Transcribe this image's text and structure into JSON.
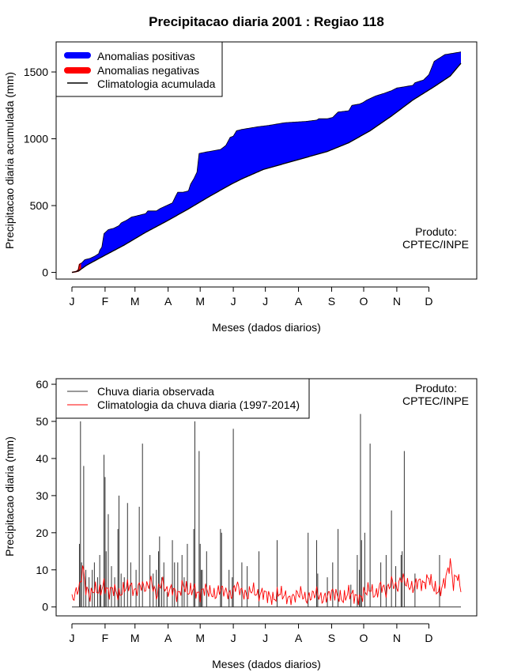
{
  "title": "Precipitacao diaria 2001 : Regiao 118",
  "colors": {
    "positive_anomaly": "#0000ff",
    "negative_anomaly": "#ff0000",
    "climatology_line": "#000000",
    "observed_rain": "#333333",
    "climatology_rain": "#ff0000"
  },
  "chart_data": [
    {
      "type": "area",
      "id": "accumulated",
      "ylabel": "Precipitacao diaria acumulada (mm)",
      "xlabel": "Meses (dados diarios)",
      "x_domain": [
        1,
        365
      ],
      "ylim": [
        -50,
        1725
      ],
      "yticks": [
        0,
        500,
        1000,
        1500
      ],
      "month_ticks": [
        {
          "label": "J",
          "day": 1
        },
        {
          "label": "F",
          "day": 32
        },
        {
          "label": "M",
          "day": 60
        },
        {
          "label": "A",
          "day": 91
        },
        {
          "label": "M",
          "day": 121
        },
        {
          "label": "J",
          "day": 152
        },
        {
          "label": "J",
          "day": 182
        },
        {
          "label": "A",
          "day": 213
        },
        {
          "label": "S",
          "day": 244
        },
        {
          "label": "O",
          "day": 274
        },
        {
          "label": "N",
          "day": 305
        },
        {
          "label": "D",
          "day": 335
        }
      ],
      "legend": [
        "Anomalias positivas",
        "Anomalias negativas",
        "Climatologia acumulada"
      ],
      "product_label": [
        "Produto:",
        "CPTEC/INPE"
      ],
      "climatology_accumulated": {
        "days": [
          1,
          7,
          15,
          30,
          50,
          70,
          90,
          110,
          130,
          150,
          160,
          180,
          200,
          220,
          240,
          260,
          280,
          300,
          320,
          340,
          355,
          365
        ],
        "values": [
          0,
          10,
          55,
          120,
          205,
          300,
          385,
          475,
          570,
          660,
          700,
          770,
          815,
          860,
          905,
          970,
          1060,
          1170,
          1290,
          1390,
          1470,
          1565
        ]
      },
      "observed_accumulated": {
        "days": [
          1,
          5,
          7,
          8,
          10,
          13,
          18,
          22,
          26,
          27,
          29,
          31,
          35,
          40,
          45,
          47,
          52,
          57,
          60,
          70,
          72,
          80,
          84,
          95,
          98,
          100,
          105,
          110,
          112,
          115,
          118,
          120,
          126,
          140,
          145,
          149,
          152,
          155,
          160,
          175,
          185,
          200,
          220,
          230,
          232,
          240,
          245,
          250,
          260,
          263,
          270,
          273,
          275,
          277,
          285,
          293,
          300,
          305,
          320,
          322,
          330,
          335,
          340,
          350,
          365
        ],
        "values": [
          0,
          5,
          20,
          60,
          70,
          95,
          105,
          120,
          140,
          165,
          190,
          290,
          320,
          330,
          350,
          370,
          390,
          415,
          420,
          440,
          460,
          460,
          480,
          520,
          570,
          600,
          600,
          610,
          660,
          700,
          750,
          890,
          900,
          920,
          950,
          1010,
          1020,
          1060,
          1070,
          1090,
          1100,
          1120,
          1130,
          1140,
          1150,
          1150,
          1160,
          1200,
          1210,
          1250,
          1260,
          1270,
          1280,
          1290,
          1320,
          1340,
          1360,
          1380,
          1400,
          1420,
          1440,
          1480,
          1580,
          1630,
          1650
        ]
      }
    },
    {
      "type": "line",
      "id": "daily",
      "ylabel": "Precipitacao diaria (mm)",
      "xlabel": "Meses (dados diarios)",
      "x_domain": [
        1,
        365
      ],
      "ylim": [
        -2.4,
        61.5
      ],
      "yticks": [
        0,
        10,
        20,
        30,
        40,
        50,
        60
      ],
      "month_ticks": [
        {
          "label": "J",
          "day": 1
        },
        {
          "label": "F",
          "day": 32
        },
        {
          "label": "M",
          "day": 60
        },
        {
          "label": "A",
          "day": 91
        },
        {
          "label": "M",
          "day": 121
        },
        {
          "label": "J",
          "day": 152
        },
        {
          "label": "J",
          "day": 182
        },
        {
          "label": "A",
          "day": 213
        },
        {
          "label": "S",
          "day": 244
        },
        {
          "label": "O",
          "day": 274
        },
        {
          "label": "N",
          "day": 305
        },
        {
          "label": "D",
          "day": 335
        }
      ],
      "legend": [
        "Chuva diaria observada",
        "Climatologia da chuva diaria (1997-2014)"
      ],
      "product_label": [
        "Produto:",
        "CPTEC/INPE"
      ],
      "observed_events": {
        "days": [
          8,
          9,
          10,
          12,
          14,
          17,
          20,
          22,
          25,
          27,
          28,
          31,
          32,
          33,
          35,
          38,
          41,
          44,
          45,
          47,
          50,
          53,
          56,
          61,
          64,
          67,
          74,
          77,
          80,
          82,
          83,
          85,
          87,
          90,
          95,
          97,
          100,
          104,
          106,
          109,
          115,
          116,
          120,
          121,
          122,
          123,
          127,
          140,
          141,
          148,
          151,
          152,
          160,
          165,
          176,
          193,
          222,
          230,
          231,
          240,
          245,
          250,
          262,
          268,
          270,
          271,
          272,
          275,
          280,
          290,
          295,
          300,
          304,
          309,
          310,
          312,
          322,
          345
        ],
        "values": [
          17,
          50,
          12,
          38,
          10,
          8,
          10,
          12,
          8,
          14,
          6,
          41,
          35,
          15,
          25,
          11,
          8,
          21,
          30,
          9,
          8,
          28,
          12,
          10,
          27,
          44,
          14,
          9,
          10,
          15,
          19,
          8,
          12,
          4,
          18,
          12,
          12,
          14,
          8,
          17,
          21,
          50,
          42,
          17,
          10,
          10,
          15,
          21,
          20,
          10,
          8,
          48,
          12,
          11,
          15,
          18,
          20,
          18,
          9,
          8,
          12,
          21,
          6,
          14,
          10,
          52,
          18,
          20,
          44,
          12,
          14,
          26,
          11,
          14,
          15,
          42,
          9,
          14
        ]
      },
      "climatology_daily": {
        "days": [
          1,
          5,
          9,
          11,
          14,
          18,
          22,
          27,
          31,
          35,
          40,
          45,
          50,
          55,
          60,
          65,
          70,
          75,
          80,
          85,
          90,
          95,
          100,
          105,
          110,
          115,
          120,
          125,
          130,
          135,
          140,
          145,
          150,
          155,
          160,
          165,
          170,
          175,
          180,
          185,
          190,
          195,
          200,
          205,
          210,
          215,
          220,
          225,
          230,
          235,
          240,
          245,
          250,
          255,
          260,
          265,
          270,
          275,
          280,
          285,
          290,
          295,
          300,
          305,
          310,
          315,
          320,
          325,
          330,
          335,
          340,
          345,
          350,
          355,
          358,
          361,
          365
        ],
        "values": [
          2,
          4,
          6,
          11,
          5,
          3,
          5,
          4,
          6,
          4,
          5,
          3,
          5,
          6,
          4,
          6,
          5,
          7,
          3,
          7,
          4,
          5,
          3,
          6,
          4,
          5,
          3,
          5,
          4,
          3,
          5,
          4,
          3,
          6,
          4,
          3,
          5,
          3,
          4,
          3,
          2,
          4,
          3,
          2,
          3,
          4,
          2,
          3,
          4,
          2,
          3,
          4,
          3,
          2,
          4,
          3,
          2,
          4,
          5,
          3,
          6,
          4,
          7,
          5,
          8,
          6,
          5,
          7,
          6,
          8,
          5,
          4,
          7,
          12,
          6,
          9,
          5
        ]
      }
    }
  ]
}
